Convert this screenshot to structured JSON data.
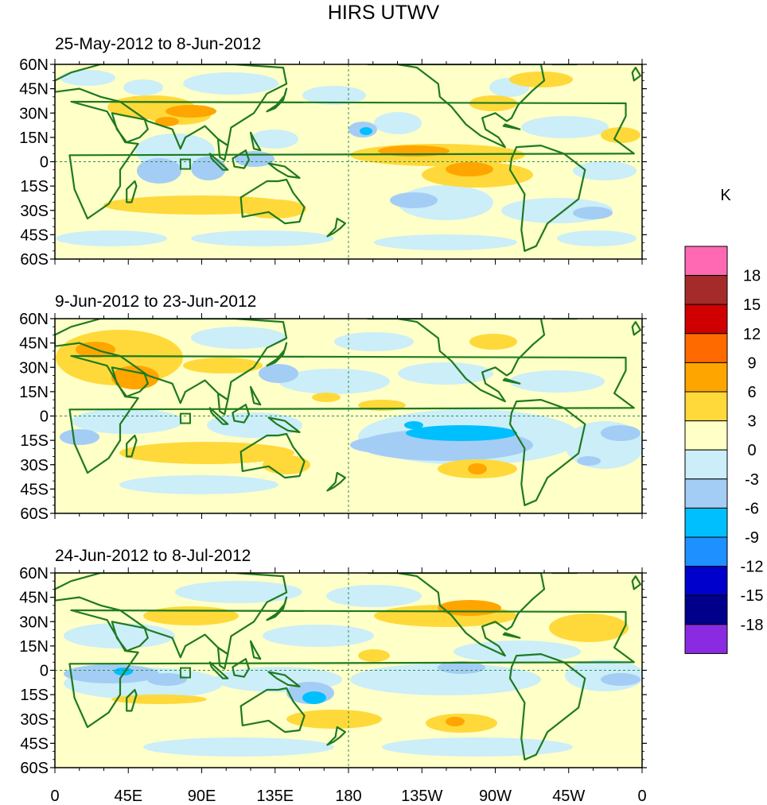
{
  "figure": {
    "title": "HIRS UTWV",
    "units_label": "K",
    "panels": [
      {
        "id": "p1",
        "title": "25-May-2012 to 8-Jun-2012"
      },
      {
        "id": "p2",
        "title": "9-Jun-2012 to 23-Jun-2012"
      },
      {
        "id": "p3",
        "title": "24-Jun-2012 to 8-Jul-2012"
      }
    ],
    "lat_ticks": [
      "60N",
      "45N",
      "30N",
      "15N",
      "0",
      "15S",
      "30S",
      "45S",
      "60S"
    ],
    "lat_values": [
      60,
      45,
      30,
      15,
      0,
      -15,
      -30,
      -45,
      -60
    ],
    "lon_ticks": [
      "0",
      "45E",
      "90E",
      "135E",
      "180",
      "135W",
      "90W",
      "45W",
      "0"
    ],
    "lon_values": [
      0,
      45,
      90,
      135,
      180,
      225,
      270,
      315,
      360
    ],
    "colorbar": {
      "labels": [
        "18",
        "15",
        "12",
        "9",
        "6",
        "3",
        "0",
        "-3",
        "-6",
        "-9",
        "-12",
        "-15",
        "-18"
      ],
      "colors": [
        "#ff69b4",
        "#a52a2a",
        "#d00000",
        "#ff6a00",
        "#ffa500",
        "#ffd93a",
        "#ffffc8",
        "#cbeef8",
        "#a4cdf5",
        "#00bfff",
        "#1e90ff",
        "#0000cd",
        "#00008b",
        "#8a2be2"
      ]
    },
    "colors": {
      "land_outline": "#1f7a1f",
      "reference_line": "#2e8b57",
      "background_field": "#ffffc8"
    }
  }
}
